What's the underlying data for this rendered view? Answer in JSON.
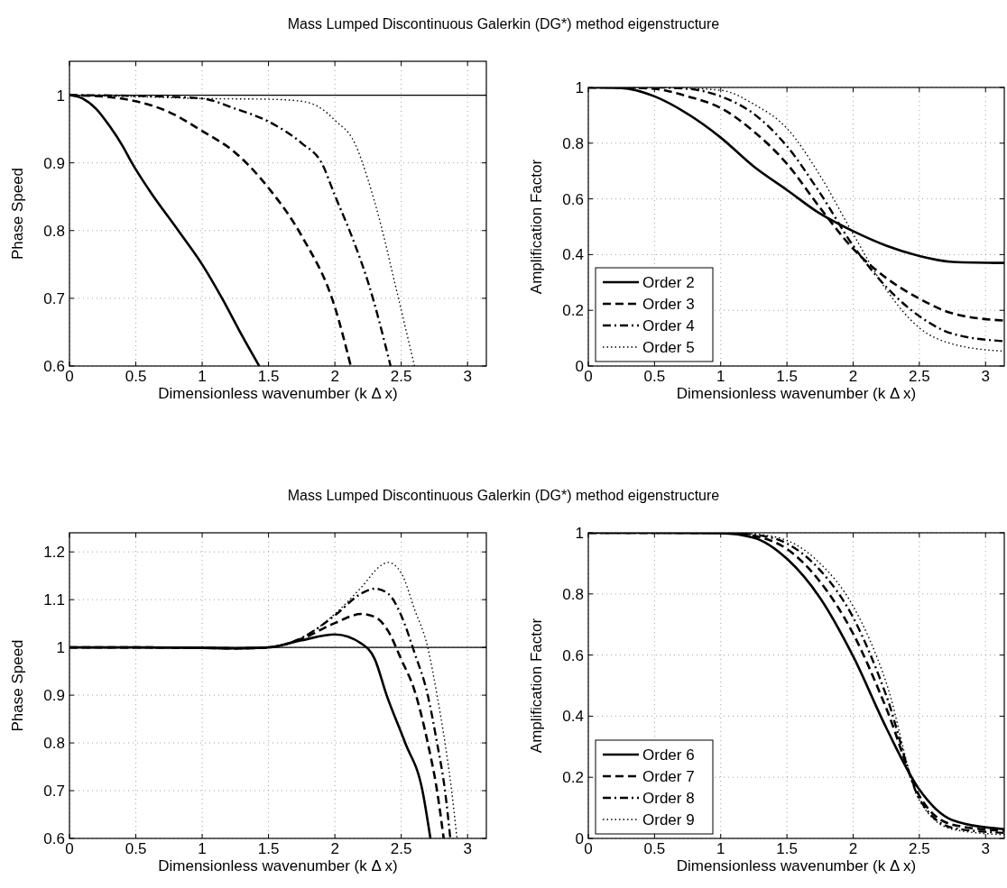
{
  "chart_data": [
    {
      "type": "line",
      "title": "Mass Lumped Discontinuous Galerkin (DG*) method eigenstructure",
      "xlabel": "Dimensionless wavenumber (k Δ x)",
      "ylabel": "Phase Speed",
      "xlim": [
        0,
        3.1416
      ],
      "xticks": [
        0,
        0.5,
        1,
        1.5,
        2,
        2.5,
        3
      ],
      "ylim": [
        0.6,
        1.05
      ],
      "yticks": [
        0.6,
        0.7,
        0.8,
        0.9,
        1
      ],
      "grid": true,
      "ref_lines": [
        {
          "axis": "y",
          "value": 1,
          "color": "#000000"
        }
      ],
      "series": [
        {
          "color": "#000000",
          "line_style": "solid",
          "x": [
            0,
            0.1,
            0.2,
            0.3,
            0.4,
            0.47,
            0.6,
            0.82,
            1.0,
            1.15,
            1.3,
            1.43
          ],
          "values": [
            1,
            0.995,
            0.98,
            0.955,
            0.925,
            0.9,
            0.86,
            0.8,
            0.75,
            0.7,
            0.645,
            0.6
          ]
        },
        {
          "color": "#000000",
          "line_style": "dashed",
          "x": [
            0,
            0.25,
            0.5,
            0.75,
            1.0,
            1.25,
            1.5,
            1.75,
            2.0,
            2.12
          ],
          "values": [
            1,
            0.998,
            0.991,
            0.975,
            0.947,
            0.915,
            0.863,
            0.792,
            0.687,
            0.6
          ]
        },
        {
          "color": "#000000",
          "line_style": "dashdot",
          "x": [
            0,
            0.5,
            1.0,
            1.25,
            1.5,
            1.75,
            1.9,
            2.0,
            2.15,
            2.25,
            2.42
          ],
          "values": [
            1,
            0.999,
            0.995,
            0.98,
            0.961,
            0.929,
            0.9,
            0.852,
            0.78,
            0.724,
            0.6
          ]
        },
        {
          "color": "#000000",
          "line_style": "dotted",
          "x": [
            0,
            0.5,
            1.0,
            1.5,
            1.75,
            1.9,
            2.0,
            2.15,
            2.25,
            2.35,
            2.45,
            2.6
          ],
          "values": [
            1,
            0.998,
            0.995,
            0.994,
            0.991,
            0.98,
            0.963,
            0.929,
            0.875,
            0.806,
            0.724,
            0.6
          ]
        }
      ]
    },
    {
      "type": "line",
      "xlabel": "Dimensionless wavenumber (k Δ x)",
      "ylabel": "Amplification Factor",
      "xlim": [
        0,
        3.1416
      ],
      "xticks": [
        0,
        0.5,
        1,
        1.5,
        2,
        2.5,
        3
      ],
      "ylim": [
        0,
        1
      ],
      "yticks": [
        0,
        0.2,
        0.4,
        0.6,
        0.8,
        1
      ],
      "grid": true,
      "legend": "bottom left",
      "series": [
        {
          "name": "Order 2",
          "color": "#000000",
          "line_style": "solid",
          "x": [
            0,
            0.25,
            0.5,
            0.75,
            1.0,
            1.25,
            1.5,
            1.75,
            2.0,
            2.25,
            2.5,
            2.75,
            3.1416
          ],
          "values": [
            1,
            0.998,
            0.968,
            0.905,
            0.82,
            0.716,
            0.632,
            0.547,
            0.484,
            0.432,
            0.395,
            0.374,
            0.37
          ]
        },
        {
          "name": "Order 3",
          "color": "#000000",
          "line_style": "dashed",
          "x": [
            0,
            0.25,
            0.5,
            0.75,
            1.0,
            1.25,
            1.5,
            1.75,
            2.0,
            2.25,
            2.5,
            2.75,
            3.1416
          ],
          "values": [
            1,
            1,
            0.995,
            0.968,
            0.926,
            0.842,
            0.726,
            0.568,
            0.421,
            0.316,
            0.242,
            0.189,
            0.163
          ]
        },
        {
          "name": "Order 4",
          "color": "#000000",
          "line_style": "dashdot",
          "x": [
            0,
            0.5,
            0.75,
            1.0,
            1.25,
            1.5,
            1.75,
            2.0,
            2.25,
            2.5,
            2.75,
            3.1416
          ],
          "values": [
            1,
            1,
            0.995,
            0.968,
            0.905,
            0.789,
            0.621,
            0.432,
            0.284,
            0.179,
            0.116,
            0.089
          ]
        },
        {
          "name": "Order 5",
          "color": "#000000",
          "line_style": "dotted",
          "x": [
            0,
            0.5,
            1.0,
            1.25,
            1.5,
            1.75,
            2.0,
            2.25,
            2.5,
            2.75,
            3.1416
          ],
          "values": [
            1,
            1,
            0.99,
            0.94,
            0.853,
            0.684,
            0.474,
            0.274,
            0.137,
            0.079,
            0.053
          ]
        }
      ]
    },
    {
      "type": "line",
      "title": "Mass Lumped Discontinuous Galerkin (DG*) method eigenstructure",
      "xlabel": "Dimensionless wavenumber (k Δ x)",
      "ylabel": "Phase Speed",
      "xlim": [
        0,
        3.1416
      ],
      "xticks": [
        0,
        0.5,
        1,
        1.5,
        2,
        2.5,
        3
      ],
      "ylim": [
        0.6,
        1.24
      ],
      "yticks": [
        0.6,
        0.7,
        0.8,
        0.9,
        1,
        1.1,
        1.2
      ],
      "grid": true,
      "ref_lines": [
        {
          "axis": "y",
          "value": 1,
          "color": "#000000"
        }
      ],
      "series": [
        {
          "color": "#000000",
          "line_style": "solid",
          "x": [
            0,
            0.5,
            1.0,
            1.25,
            1.5,
            1.75,
            2.0,
            2.2,
            2.3,
            2.39,
            2.53,
            2.66,
            2.72
          ],
          "values": [
            1,
            1,
            0.999,
            0.998,
            1.0,
            1.015,
            1.027,
            1.008,
            0.976,
            0.9,
            0.8,
            0.7,
            0.6
          ]
        },
        {
          "color": "#000000",
          "line_style": "dashed",
          "x": [
            0,
            0.5,
            1.0,
            1.25,
            1.5,
            1.75,
            2.0,
            2.2,
            2.3,
            2.4,
            2.5,
            2.6,
            2.7,
            2.77,
            2.82
          ],
          "values": [
            1,
            1,
            0.999,
            0.998,
            1.0,
            1.018,
            1.051,
            1.07,
            1.064,
            1.035,
            0.975,
            0.91,
            0.8,
            0.7,
            0.6
          ]
        },
        {
          "color": "#000000",
          "line_style": "dashdot",
          "x": [
            0,
            0.5,
            1.0,
            1.25,
            1.5,
            1.75,
            2.0,
            2.2,
            2.3,
            2.4,
            2.5,
            2.6,
            2.7,
            2.77,
            2.83,
            2.87
          ],
          "values": [
            1,
            1,
            0.999,
            0.998,
            1.0,
            1.02,
            1.067,
            1.113,
            1.123,
            1.113,
            1.067,
            0.989,
            0.9,
            0.8,
            0.7,
            0.6
          ]
        },
        {
          "color": "#000000",
          "line_style": "dotted",
          "x": [
            0,
            0.5,
            1.0,
            1.25,
            1.5,
            1.75,
            2.0,
            2.2,
            2.35,
            2.4,
            2.5,
            2.6,
            2.7,
            2.77,
            2.83,
            2.88,
            2.92
          ],
          "values": [
            1,
            1,
            0.999,
            0.998,
            1.0,
            1.02,
            1.07,
            1.126,
            1.172,
            1.178,
            1.156,
            1.08,
            1.0,
            0.9,
            0.8,
            0.7,
            0.6
          ]
        }
      ]
    },
    {
      "type": "line",
      "xlabel": "Dimensionless wavenumber (k Δ x)",
      "ylabel": "Amplification Factor",
      "xlim": [
        0,
        3.1416
      ],
      "xticks": [
        0,
        0.5,
        1,
        1.5,
        2,
        2.5,
        3
      ],
      "ylim": [
        0,
        1
      ],
      "yticks": [
        0,
        0.2,
        0.4,
        0.6,
        0.8,
        1
      ],
      "grid": true,
      "legend": "bottom left",
      "series": [
        {
          "name": "Order 6",
          "color": "#000000",
          "line_style": "solid",
          "x": [
            0,
            0.5,
            1.0,
            1.25,
            1.5,
            1.75,
            2.0,
            2.25,
            2.5,
            2.75,
            3.1416
          ],
          "values": [
            1,
            1,
            0.999,
            0.984,
            0.915,
            0.787,
            0.596,
            0.362,
            0.16,
            0.06,
            0.03
          ]
        },
        {
          "name": "Order 7",
          "color": "#000000",
          "line_style": "dashed",
          "x": [
            0,
            0.5,
            1.0,
            1.25,
            1.5,
            1.75,
            2.0,
            2.25,
            2.5,
            2.75,
            3.1416
          ],
          "values": [
            1,
            1,
            1,
            0.99,
            0.947,
            0.84,
            0.67,
            0.426,
            0.14,
            0.045,
            0.025
          ]
        },
        {
          "name": "Order 8",
          "color": "#000000",
          "line_style": "dashdot",
          "x": [
            0,
            0.5,
            1.0,
            1.25,
            1.5,
            1.75,
            2.0,
            2.25,
            2.5,
            2.75,
            3.1416
          ],
          "values": [
            1,
            1,
            1,
            0.994,
            0.965,
            0.878,
            0.723,
            0.468,
            0.13,
            0.035,
            0.018
          ]
        },
        {
          "name": "Order 9",
          "color": "#000000",
          "line_style": "dotted",
          "x": [
            0,
            0.5,
            1.0,
            1.25,
            1.5,
            1.75,
            2.0,
            2.25,
            2.5,
            2.75,
            3.1416
          ],
          "values": [
            1,
            1,
            1,
            0.996,
            0.975,
            0.9,
            0.76,
            0.51,
            0.125,
            0.03,
            0.012
          ]
        }
      ]
    }
  ]
}
